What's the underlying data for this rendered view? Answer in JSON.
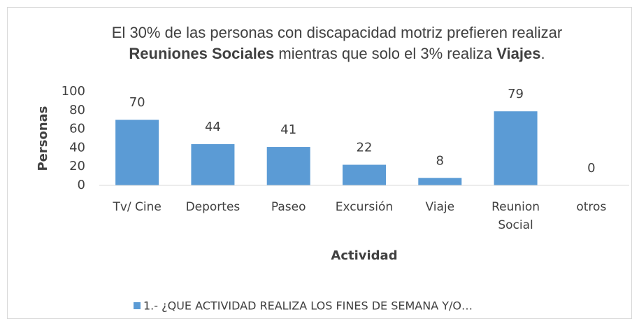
{
  "chart_data": {
    "type": "bar",
    "title": [
      "El 30% de las personas con discapacidad motriz prefieren realizar",
      "Reuniones Sociales",
      " mientras que solo el 3% realiza ",
      "Viajes",
      "."
    ],
    "categories": [
      "Tv/ Cine",
      "Deportes",
      "Paseo",
      "Excursión",
      "Viaje",
      "Reunion Social",
      "otros"
    ],
    "series": [
      {
        "name": "1.- ¿QUE ACTIVIDAD REALIZA LOS FINES DE SEMANA Y/O…",
        "color": "#5b9bd5",
        "values": [
          70,
          44,
          41,
          22,
          8,
          79,
          0
        ]
      }
    ],
    "ylim": [
      0,
      100
    ],
    "yticks": [
      0,
      20,
      40,
      60,
      80,
      100
    ],
    "grid": false,
    "y_label": "Personas",
    "x_label": "Actividad",
    "legend": "bottom"
  }
}
